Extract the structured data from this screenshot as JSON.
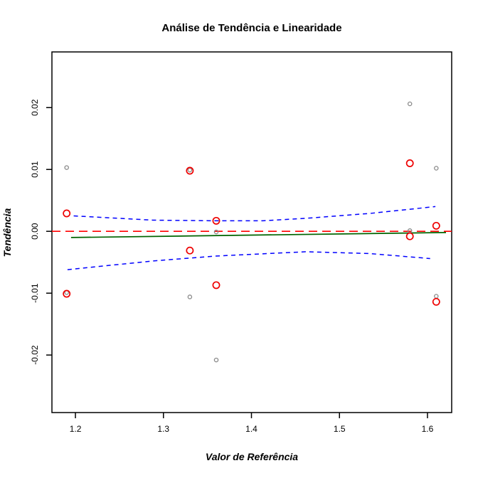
{
  "chart_data": {
    "type": "scatter",
    "title": "Análise de Tendência e Linearidade",
    "xlabel": "Valor de Referência",
    "ylabel": "Tendência",
    "xlim": [
      1.1733,
      1.6275
    ],
    "ylim": [
      -0.0293,
      0.029
    ],
    "grid": false,
    "legend": "none",
    "x_ticks": [
      1.2,
      1.3,
      1.4,
      1.5,
      1.6
    ],
    "x_tick_labels": [
      "1.2",
      "1.3",
      "1.4",
      "1.5",
      "1.6"
    ],
    "y_ticks": [
      -0.02,
      -0.01,
      0.0,
      0.01,
      0.02
    ],
    "y_tick_labels": [
      "-0.02",
      "-0.01",
      "0.00",
      "0.01",
      "0.02"
    ],
    "series": [
      {
        "name": "individual-measurements",
        "marker": "open-circle-small",
        "color": "#8a8a8a",
        "points": [
          [
            1.19,
            0.0103
          ],
          [
            1.33,
            0.0099
          ],
          [
            1.58,
            0.0206
          ],
          [
            1.61,
            0.0102
          ],
          [
            1.36,
            -0.0001
          ],
          [
            1.58,
            0.0001
          ],
          [
            1.19,
            -0.0099
          ],
          [
            1.33,
            -0.0106
          ],
          [
            1.61,
            -0.0105
          ],
          [
            1.36,
            -0.0208
          ]
        ]
      },
      {
        "name": "means",
        "marker": "open-circle-large",
        "color": "#ee0000",
        "points": [
          [
            1.19,
            0.0029
          ],
          [
            1.33,
            0.0098
          ],
          [
            1.36,
            0.0017
          ],
          [
            1.58,
            0.011
          ],
          [
            1.58,
            -0.0008
          ],
          [
            1.61,
            0.0009
          ],
          [
            1.33,
            -0.0031
          ],
          [
            1.36,
            -0.0087
          ],
          [
            1.19,
            -0.0101
          ],
          [
            1.61,
            -0.0114
          ]
        ]
      }
    ],
    "lines": [
      {
        "name": "zero-line",
        "style": "dashed-long",
        "color": "#ff0000",
        "points": [
          [
            1.1733,
            0.0
          ],
          [
            1.6275,
            0.0
          ]
        ]
      },
      {
        "name": "regression-line",
        "style": "solid",
        "color": "#006400",
        "points": [
          [
            1.195,
            -0.001
          ],
          [
            1.621,
            -0.0002
          ]
        ]
      },
      {
        "name": "upper-confidence-band",
        "style": "dashed-short",
        "color": "#0000ff",
        "points": [
          [
            1.198,
            0.0025
          ],
          [
            1.288,
            0.0018
          ],
          [
            1.359,
            0.0017
          ],
          [
            1.413,
            0.0017
          ],
          [
            1.462,
            0.0021
          ],
          [
            1.535,
            0.0029
          ],
          [
            1.609,
            0.004
          ]
        ]
      },
      {
        "name": "lower-confidence-band",
        "style": "dashed-short",
        "color": "#0000ff",
        "points": [
          [
            1.191,
            -0.0062
          ],
          [
            1.288,
            -0.0048
          ],
          [
            1.359,
            -0.004
          ],
          [
            1.462,
            -0.0033
          ],
          [
            1.535,
            -0.0036
          ],
          [
            1.603,
            -0.0044
          ]
        ]
      }
    ]
  }
}
